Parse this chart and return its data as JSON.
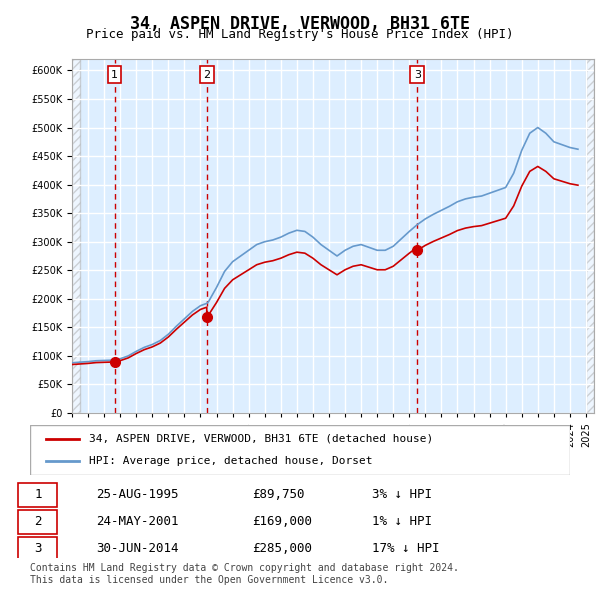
{
  "title": "34, ASPEN DRIVE, VERWOOD, BH31 6TE",
  "subtitle": "Price paid vs. HM Land Registry's House Price Index (HPI)",
  "ylabel": "",
  "ylim": [
    0,
    620000
  ],
  "yticks": [
    0,
    50000,
    100000,
    150000,
    200000,
    250000,
    300000,
    350000,
    400000,
    450000,
    500000,
    550000,
    600000
  ],
  "xlim_start": 1993.0,
  "xlim_end": 2025.5,
  "sales": [
    {
      "year": 1995.65,
      "price": 89750,
      "label": "1"
    },
    {
      "year": 2001.39,
      "price": 169000,
      "label": "2"
    },
    {
      "year": 2014.5,
      "price": 285000,
      "label": "3"
    }
  ],
  "sale_color": "#cc0000",
  "hpi_color": "#6699cc",
  "dashed_line_color": "#cc0000",
  "bg_hatch_color": "#cccccc",
  "bg_plot_color": "#ddeeff",
  "grid_color": "#ffffff",
  "legend_label_red": "34, ASPEN DRIVE, VERWOOD, BH31 6TE (detached house)",
  "legend_label_blue": "HPI: Average price, detached house, Dorset",
  "table_rows": [
    {
      "num": "1",
      "date": "25-AUG-1995",
      "price": "£89,750",
      "hpi": "3% ↓ HPI"
    },
    {
      "num": "2",
      "date": "24-MAY-2001",
      "price": "£169,000",
      "hpi": "1% ↓ HPI"
    },
    {
      "num": "3",
      "date": "30-JUN-2014",
      "price": "£285,000",
      "hpi": "17% ↓ HPI"
    }
  ],
  "footer": "Contains HM Land Registry data © Crown copyright and database right 2024.\nThis data is licensed under the Open Government Licence v3.0.",
  "title_fontsize": 12,
  "subtitle_fontsize": 10,
  "tick_fontsize": 8,
  "label_fontsize": 8
}
